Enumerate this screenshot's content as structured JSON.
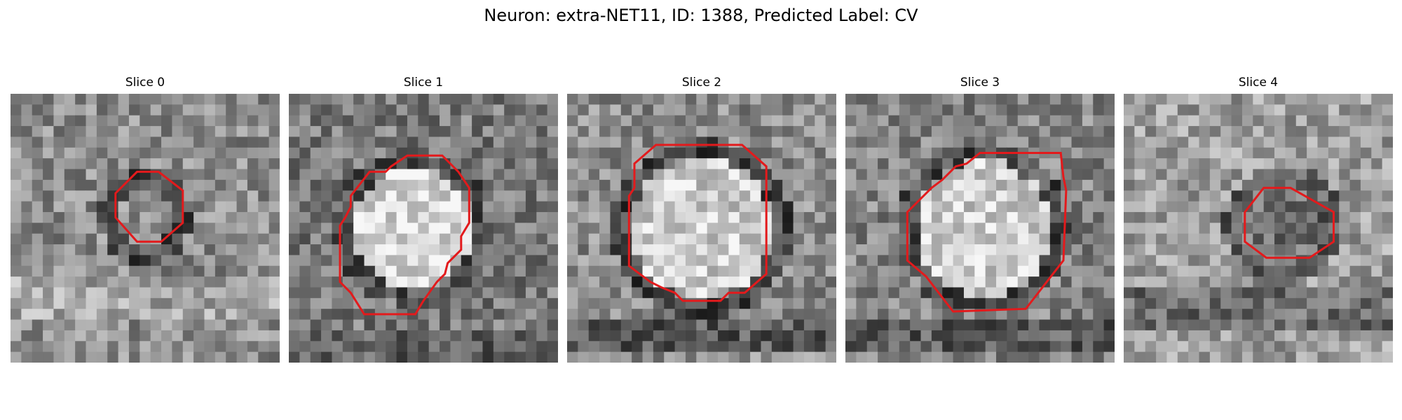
{
  "figure": {
    "title": "Neuron: extra-NET11, ID: 1388, Predicted Label: CV"
  },
  "contour_color": "#e31a1c",
  "panels": [
    {
      "title": "Slice 0"
    },
    {
      "title": "Slice 1"
    },
    {
      "title": "Slice 2"
    },
    {
      "title": "Slice 3"
    },
    {
      "title": "Slice 4"
    }
  ]
}
